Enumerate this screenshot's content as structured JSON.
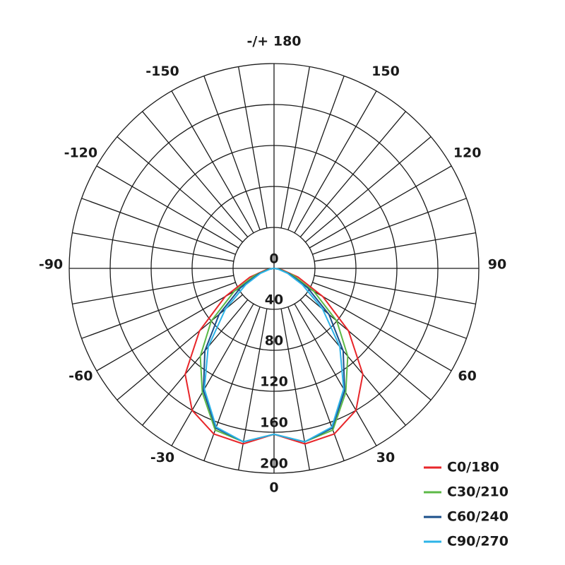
{
  "chart_data": {
    "type": "polar",
    "angles": [
      -90,
      -80,
      -70,
      -60,
      -50,
      -40,
      -30,
      -20,
      -10,
      0,
      10,
      20,
      30,
      40,
      50,
      60,
      70,
      80,
      90
    ],
    "series": [
      {
        "name": "C0/180",
        "color": "#e8262a",
        "values": [
          0,
          8,
          25,
          55,
          95,
          135,
          160,
          172,
          174,
          162,
          174,
          172,
          160,
          135,
          95,
          55,
          25,
          8,
          0
        ]
      },
      {
        "name": "C30/210",
        "color": "#5cb947",
        "values": [
          0,
          6,
          20,
          45,
          80,
          112,
          140,
          168,
          172,
          162,
          172,
          168,
          140,
          112,
          80,
          45,
          20,
          6,
          0
        ]
      },
      {
        "name": "C60/240",
        "color": "#1b4f8a",
        "values": [
          0,
          5,
          16,
          38,
          70,
          105,
          138,
          166,
          172,
          162,
          172,
          166,
          138,
          105,
          70,
          38,
          16,
          5,
          0
        ]
      },
      {
        "name": "C90/270",
        "color": "#2db4e8",
        "values": [
          0,
          4,
          14,
          32,
          62,
          100,
          136,
          165,
          172,
          162,
          172,
          165,
          136,
          100,
          62,
          32,
          14,
          4,
          0
        ]
      }
    ],
    "rlim": [
      0,
      200
    ],
    "rticks": [
      0,
      40,
      80,
      120,
      160,
      200
    ],
    "angle_ticks": [
      0,
      30,
      60,
      90,
      120,
      150,
      {
        "value": 180,
        "label": "-/+ 180"
      },
      -150,
      -120,
      -90,
      -60,
      -30
    ]
  }
}
